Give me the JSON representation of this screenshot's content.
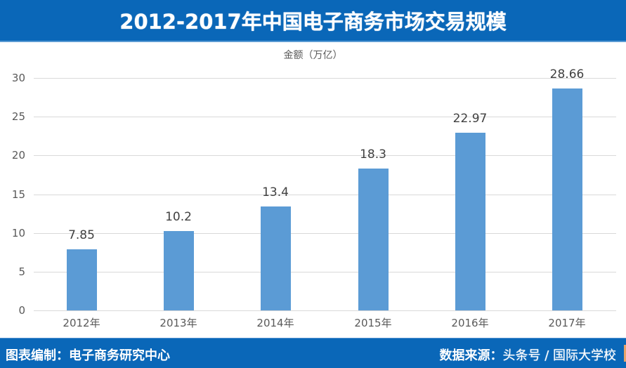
{
  "header": {
    "title": "2012-2017年中国电子商务市场交易规模"
  },
  "unit_label": "金额（万亿）",
  "footer": {
    "left": "图表编制：电子商务研究中心",
    "right_label": "数据来源：",
    "right_watermark": "头条号 / 国际大学校"
  },
  "colors": {
    "header_bg": "#0a67b8",
    "bar": "#5b9bd5",
    "grid": "#d9d9d9",
    "text": "#595959"
  },
  "chart_data": {
    "type": "bar",
    "title": "2012-2017年中国电子商务市场交易规模",
    "xlabel": "",
    "ylabel": "金额（万亿）",
    "categories": [
      "2012年",
      "2013年",
      "2014年",
      "2015年",
      "2016年",
      "2017年"
    ],
    "values": [
      7.85,
      10.2,
      13.4,
      18.3,
      22.97,
      28.66
    ],
    "value_labels": [
      "7.85",
      "10.2",
      "13.4",
      "18.3",
      "22.97",
      "28.66"
    ],
    "ylim": [
      0,
      30
    ],
    "yticks": [
      "0",
      "5",
      "10",
      "15",
      "20",
      "25",
      "30"
    ],
    "grid": true,
    "legend": null
  }
}
